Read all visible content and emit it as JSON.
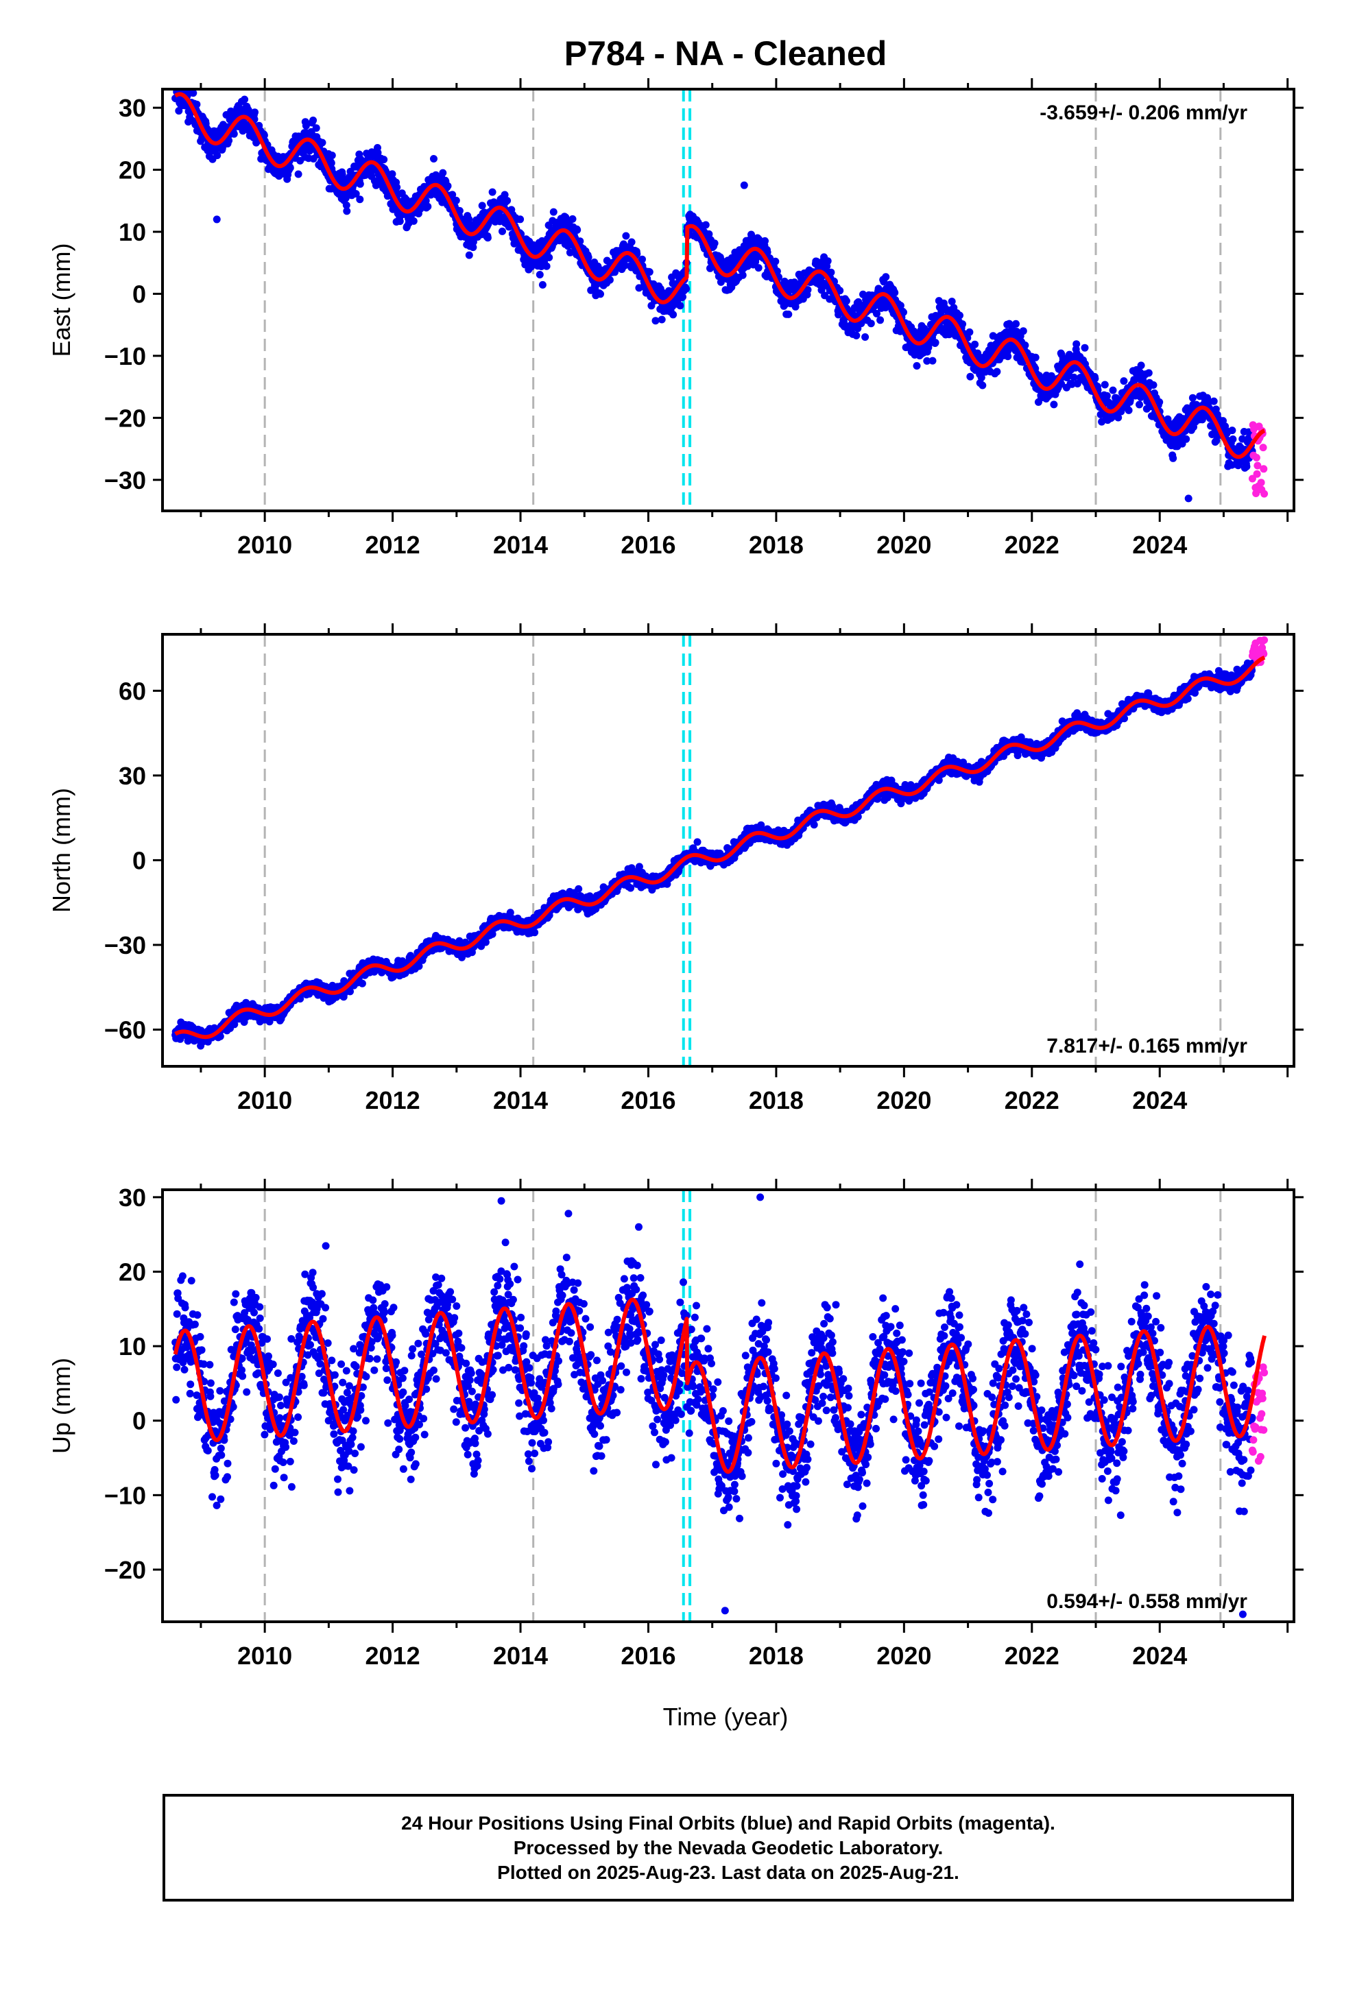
{
  "title": "P784  - NA - Cleaned",
  "xlabel": "Time (year)",
  "footer": {
    "line1": "24 Hour Positions Using Final Orbits (blue) and Rapid Orbits (magenta).",
    "line2": "Processed by the Nevada Geodetic Laboratory.",
    "line3": "Plotted on 2025-Aug-23. Last data on 2025-Aug-21."
  },
  "colors": {
    "final_orbits": "#0000ee",
    "rapid_orbits": "#ff22dd",
    "model_fit": "#ff0000",
    "equipment_change": "#b4b4b4",
    "earthquake": "#00e5ee"
  },
  "chart_data": [
    {
      "type": "scatter",
      "ylabel": "East (mm)",
      "annotation": "-3.659+/- 0.206 mm/yr",
      "rate": -3.659,
      "rate_sigma": 0.206,
      "xlim": [
        2008.4,
        2026.1
      ],
      "ylim": [
        -35,
        33
      ],
      "xticks": [
        2010,
        2012,
        2014,
        2016,
        2018,
        2020,
        2022,
        2024
      ],
      "yticks": [
        -30,
        -20,
        -10,
        0,
        10,
        20,
        30
      ],
      "final_range": [
        2008.6,
        2025.45
      ],
      "rapid_range": [
        2025.45,
        2025.64
      ],
      "model": {
        "t0": 2008.6,
        "y0": 29.5,
        "rate": -3.659,
        "seasonal_amp": 3.0,
        "phase": 0.55,
        "offset_at": 2016.6,
        "offset": 8.0
      },
      "noise_sd": 1.3,
      "outliers": [
        [
          2017.5,
          17.5
        ],
        [
          2009.25,
          12.0
        ],
        [
          2024.45,
          -33.0
        ]
      ],
      "rapid_spread": [
        -33,
        -21
      ],
      "equipment_changes": [
        2010.0,
        2014.2,
        2023.0,
        2024.95
      ],
      "earthquakes": [
        2016.55,
        2016.65
      ]
    },
    {
      "type": "scatter",
      "ylabel": "North (mm)",
      "annotation": "7.817+/- 0.165 mm/yr",
      "rate": 7.817,
      "rate_sigma": 0.165,
      "xlim": [
        2008.4,
        2026.1
      ],
      "ylim": [
        -73,
        80
      ],
      "xticks": [
        2010,
        2012,
        2014,
        2016,
        2018,
        2020,
        2022,
        2024
      ],
      "yticks": [
        -60,
        -30,
        0,
        30,
        60
      ],
      "final_range": [
        2008.6,
        2025.45
      ],
      "rapid_range": [
        2025.45,
        2025.64
      ],
      "model": {
        "t0": 2008.6,
        "y0": -64,
        "rate": 7.817,
        "seasonal_amp": 2.6,
        "phase": 0.6,
        "offset_at": 2016.6,
        "offset": 0
      },
      "noise_sd": 1.3,
      "outliers": [],
      "rapid_spread": [
        70,
        78
      ],
      "equipment_changes": [
        2010.0,
        2014.2,
        2023.0,
        2024.95
      ],
      "earthquakes": [
        2016.55,
        2016.65
      ]
    },
    {
      "type": "scatter",
      "ylabel": "Up (mm)",
      "annotation": "0.594+/- 0.558 mm/yr",
      "rate": 0.594,
      "rate_sigma": 0.558,
      "xlim": [
        2008.4,
        2026.1
      ],
      "ylim": [
        -27,
        31
      ],
      "xticks": [
        2010,
        2012,
        2014,
        2016,
        2018,
        2020,
        2022,
        2024
      ],
      "yticks": [
        -20,
        -10,
        0,
        10,
        20,
        30
      ],
      "final_range": [
        2008.6,
        2025.45
      ],
      "rapid_range": [
        2025.45,
        2025.64
      ],
      "model": {
        "t0": 2008.6,
        "y0": 4.5,
        "rate": 0.594,
        "seasonal_amp": 7.5,
        "phase": 0.5,
        "offset_at": 2016.6,
        "offset": -9.0
      },
      "noise_sd": 3.6,
      "outliers": [
        [
          2013.7,
          29.5
        ],
        [
          2017.75,
          30.0
        ],
        [
          2014.75,
          27.8
        ],
        [
          2015.85,
          26.0
        ],
        [
          2022.75,
          21.0
        ],
        [
          2017.2,
          -25.5
        ],
        [
          2025.3,
          -26.0
        ]
      ],
      "rapid_spread": [
        -6,
        8
      ],
      "equipment_changes": [
        2010.0,
        2014.2,
        2023.0,
        2024.95
      ],
      "earthquakes": [
        2016.55,
        2016.65
      ]
    }
  ]
}
